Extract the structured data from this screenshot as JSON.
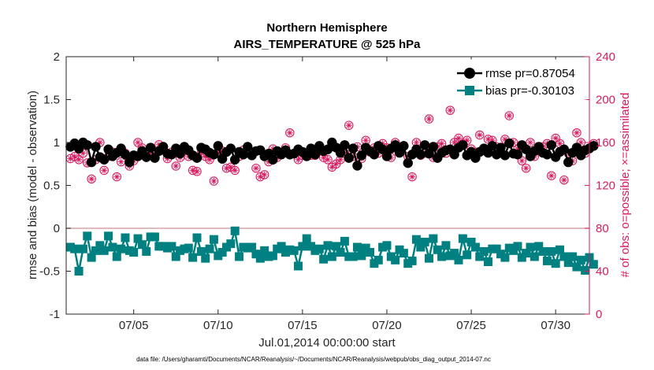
{
  "chart_data": {
    "type": "line",
    "title": "Northern Hemisphere",
    "subtitle": "AIRS_TEMPERATURE @ 525 hPa",
    "xlabel": "Jul.01,2014 00:00:00 start",
    "ylabel_left": "rmse and bias (model - observation)",
    "ylabel_right": "# of obs: o=possible; ×=assimilated",
    "footnote": "data file: /Users/gharamti/Documents/NCAR/Reanalysis/~/Documents/NCAR/Reanalysis/webpub/obs_diag_output_2014-07.nc",
    "x_range_days": [
      1,
      32
    ],
    "x_ticks": [
      {
        "day": 5,
        "label": "07/05"
      },
      {
        "day": 10,
        "label": "07/10"
      },
      {
        "day": 15,
        "label": "07/15"
      },
      {
        "day": 20,
        "label": "07/20"
      },
      {
        "day": 25,
        "label": "07/25"
      },
      {
        "day": 30,
        "label": "07/30"
      }
    ],
    "ylim_left": [
      -1,
      2
    ],
    "yticks_left": [
      "-1",
      "-0.5",
      "0",
      "0.5",
      "1",
      "1.5",
      "2"
    ],
    "ylim_right": [
      0,
      240
    ],
    "yticks_right": [
      "0",
      "40",
      "80",
      "120",
      "160",
      "200",
      "240"
    ],
    "legend": [
      {
        "label": "rmse pr=0.87054",
        "color": "#000000"
      },
      {
        "label": "bias pr=-0.30103",
        "color": "#008080"
      }
    ],
    "colors": {
      "rmse": "#000000",
      "bias": "#008080",
      "obs": "#d81b60",
      "zero_line": "#d8a5a5"
    },
    "series": [
      {
        "name": "rmse",
        "axis": "left",
        "start_day": 1.25,
        "step_days": 0.25,
        "values": [
          0.95,
          0.99,
          0.93,
          1.0,
          0.97,
          0.77,
          0.95,
          0.83,
          0.8,
          0.92,
          0.84,
          0.88,
          0.93,
          0.86,
          0.77,
          0.85,
          0.84,
          0.9,
          0.83,
          0.94,
          0.82,
          0.9,
          0.95,
          0.87,
          0.86,
          0.93,
          0.87,
          0.95,
          0.91,
          0.85,
          0.82,
          0.94,
          0.92,
          0.88,
          0.86,
          0.96,
          0.81,
          0.89,
          0.93,
          0.8,
          0.89,
          0.86,
          0.95,
          0.85,
          0.9,
          0.91,
          0.84,
          0.87,
          0.8,
          0.9,
          0.86,
          0.91,
          0.86,
          0.87,
          0.92,
          0.89,
          0.84,
          0.93,
          0.86,
          0.96,
          0.9,
          0.92,
          1.0,
          0.94,
          0.88,
          0.97,
          0.82,
          0.93,
          0.73,
          0.85,
          0.94,
          0.9,
          0.86,
          0.96,
          0.92,
          0.84,
          0.93,
          0.97,
          0.88,
          0.96,
          0.76,
          0.86,
          0.92,
          0.86,
          0.97,
          0.87,
          0.95,
          0.82,
          0.88,
          0.91,
          0.92,
          0.86,
          0.94,
          0.97,
          0.85,
          0.89,
          0.82,
          0.89,
          0.93,
          0.88,
          0.96,
          0.86,
          0.94,
          0.85,
          0.99,
          0.87,
          0.86,
          0.97,
          0.92,
          0.84,
          0.9,
          0.95,
          0.88,
          0.86,
          0.97,
          0.83,
          0.89,
          0.92,
          0.77,
          0.88,
          0.94,
          0.85,
          0.91,
          0.93,
          0.96
        ]
      },
      {
        "name": "bias",
        "axis": "left",
        "start_day": 1.25,
        "step_days": 0.25,
        "values": [
          -0.22,
          -0.24,
          -0.5,
          -0.24,
          -0.09,
          -0.34,
          -0.26,
          -0.2,
          -0.26,
          -0.09,
          -0.22,
          -0.33,
          -0.24,
          -0.11,
          -0.26,
          -0.28,
          -0.12,
          -0.19,
          -0.27,
          -0.1,
          -0.1,
          -0.21,
          -0.21,
          -0.23,
          -0.21,
          -0.33,
          -0.26,
          -0.24,
          -0.23,
          -0.34,
          -0.11,
          -0.27,
          -0.35,
          -0.24,
          -0.13,
          -0.32,
          -0.28,
          -0.22,
          -0.18,
          -0.03,
          -0.33,
          -0.22,
          -0.23,
          -0.22,
          -0.3,
          -0.35,
          -0.26,
          -0.33,
          -0.32,
          -0.24,
          -0.21,
          -0.28,
          -0.25,
          -0.26,
          -0.44,
          -0.21,
          -0.12,
          -0.21,
          -0.26,
          -0.24,
          -0.36,
          -0.2,
          -0.33,
          -0.21,
          -0.28,
          -0.15,
          -0.33,
          -0.33,
          -0.22,
          -0.32,
          -0.23,
          -0.28,
          -0.41,
          -0.37,
          -0.22,
          -0.2,
          -0.33,
          -0.37,
          -0.25,
          -0.29,
          -0.41,
          -0.38,
          -0.13,
          -0.22,
          -0.16,
          -0.35,
          -0.12,
          -0.25,
          -0.33,
          -0.2,
          -0.32,
          -0.29,
          -0.37,
          -0.12,
          -0.31,
          -0.16,
          -0.22,
          -0.33,
          -0.27,
          -0.39,
          -0.24,
          -0.24,
          -0.3,
          -0.34,
          -0.23,
          -0.26,
          -0.21,
          -0.34,
          -0.29,
          -0.22,
          -0.33,
          -0.21,
          -0.27,
          -0.38,
          -0.27,
          -0.41,
          -0.25,
          -0.33,
          -0.4,
          -0.33,
          -0.45,
          -0.37,
          -0.49,
          -0.34,
          -0.42
        ]
      },
      {
        "name": "obs_possible",
        "axis": "right",
        "start_day": 1.25,
        "step_days": 0.25,
        "values": [
          145,
          147,
          144,
          150,
          141,
          126,
          144,
          160,
          134,
          147,
          151,
          128,
          142,
          150,
          138,
          143,
          160,
          155,
          146,
          150,
          146,
          158,
          154,
          145,
          151,
          138,
          146,
          152,
          147,
          134,
          133,
          150,
          147,
          144,
          124,
          150,
          152,
          136,
          137,
          134,
          147,
          153,
          156,
          150,
          136,
          128,
          130,
          142,
          154,
          146,
          150,
          155,
          169,
          150,
          144,
          148,
          150,
          148,
          148,
          152,
          146,
          144,
          137,
          140,
          144,
          150,
          176,
          147,
          156,
          145,
          162,
          151,
          155,
          150,
          159,
          155,
          146,
          160,
          151,
          157,
          147,
          128,
          160,
          148,
          150,
          182,
          146,
          156,
          159,
          150,
          190,
          160,
          164,
          159,
          162,
          154,
          151,
          167,
          153,
          163,
          162,
          156,
          150,
          163,
          185,
          160,
          154,
          143,
          136,
          160,
          147,
          152,
          156,
          159,
          129,
          164,
          159,
          125,
          150,
          143,
          169,
          160,
          150,
          155,
          159
        ]
      },
      {
        "name": "obs_assimilated",
        "axis": "right",
        "start_day": 1.25,
        "step_days": 0.25,
        "values": [
          145,
          147,
          144,
          150,
          141,
          126,
          144,
          160,
          134,
          147,
          151,
          128,
          142,
          150,
          138,
          143,
          160,
          155,
          146,
          150,
          146,
          158,
          154,
          145,
          151,
          138,
          146,
          152,
          147,
          134,
          133,
          150,
          147,
          144,
          124,
          150,
          152,
          136,
          137,
          134,
          147,
          153,
          156,
          150,
          136,
          128,
          130,
          142,
          154,
          146,
          150,
          155,
          169,
          150,
          144,
          148,
          150,
          148,
          148,
          152,
          146,
          144,
          137,
          140,
          144,
          150,
          176,
          147,
          156,
          145,
          162,
          151,
          155,
          150,
          159,
          155,
          146,
          160,
          151,
          157,
          147,
          128,
          160,
          148,
          150,
          182,
          146,
          156,
          159,
          150,
          190,
          160,
          164,
          159,
          162,
          154,
          151,
          167,
          153,
          163,
          162,
          156,
          150,
          163,
          185,
          160,
          154,
          143,
          136,
          160,
          147,
          152,
          156,
          159,
          129,
          164,
          159,
          125,
          150,
          143,
          169,
          160,
          150,
          155,
          159
        ]
      }
    ]
  }
}
